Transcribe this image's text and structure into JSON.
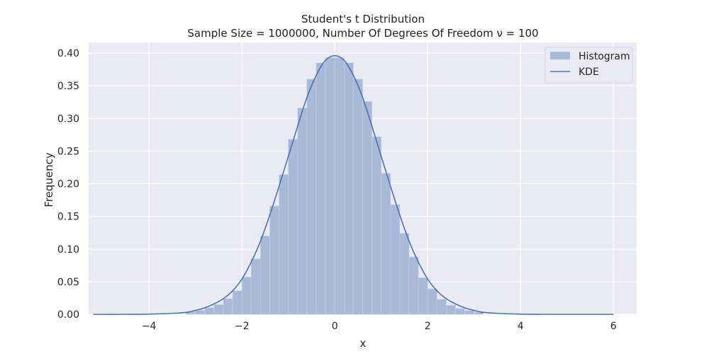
{
  "chart_data": {
    "type": "bar",
    "title": "Student's t Distribution",
    "subtitle": "Sample Size = 1000000, Number Of Degrees Of Freedom ν = 100",
    "xlabel": "x",
    "ylabel": "Frequency",
    "xlim": [
      -5.3,
      6.5
    ],
    "ylim": [
      0,
      0.4
    ],
    "xticks": [
      -4,
      -2,
      0,
      2,
      4,
      6
    ],
    "xtick_labels": [
      "−4",
      "−2",
      "0",
      "2",
      "4",
      "6"
    ],
    "yticks": [
      0.0,
      0.05,
      0.1,
      0.15,
      0.2,
      0.25,
      0.3,
      0.35,
      0.4
    ],
    "ytick_labels": [
      "0.00",
      "0.05",
      "0.10",
      "0.15",
      "0.20",
      "0.25",
      "0.30",
      "0.35",
      "0.40"
    ],
    "grid": true,
    "legend_position": "top-right",
    "colors": {
      "background": "#eaeaf2",
      "grid": "#ffffff",
      "bar": "#a9b9d8",
      "kde": "#4c72b0"
    },
    "histogram": {
      "name": "Histogram",
      "bin_width": 0.2,
      "bin_starts": [
        -3.2,
        -3.0,
        -2.8,
        -2.6,
        -2.4,
        -2.2,
        -2.0,
        -1.8,
        -1.6,
        -1.4,
        -1.2,
        -1.0,
        -0.8,
        -0.6,
        -0.4,
        -0.2,
        0.0,
        0.2,
        0.4,
        0.6,
        0.8,
        1.0,
        1.2,
        1.4,
        1.6,
        1.8,
        2.0,
        2.2,
        2.4,
        2.6,
        2.8,
        3.0
      ],
      "values": [
        0.004,
        0.006,
        0.01,
        0.015,
        0.024,
        0.036,
        0.057,
        0.085,
        0.12,
        0.166,
        0.214,
        0.268,
        0.316,
        0.36,
        0.385,
        0.393,
        0.393,
        0.385,
        0.36,
        0.326,
        0.272,
        0.216,
        0.168,
        0.124,
        0.088,
        0.056,
        0.039,
        0.023,
        0.014,
        0.009,
        0.006,
        0.003
      ]
    },
    "kde": {
      "name": "KDE",
      "x": [
        -5.2,
        -4.5,
        -4.0,
        -3.5,
        -3.2,
        -3.0,
        -2.8,
        -2.6,
        -2.4,
        -2.2,
        -2.0,
        -1.8,
        -1.6,
        -1.4,
        -1.2,
        -1.0,
        -0.8,
        -0.6,
        -0.4,
        -0.2,
        0.0,
        0.2,
        0.4,
        0.6,
        0.8,
        1.0,
        1.2,
        1.4,
        1.6,
        1.8,
        2.0,
        2.2,
        2.4,
        2.6,
        2.8,
        3.0,
        3.2,
        3.5,
        4.0,
        4.5,
        5.0,
        5.5,
        6.0
      ],
      "y": [
        0.0,
        0.0,
        0.0003,
        0.0015,
        0.003,
        0.006,
        0.01,
        0.016,
        0.024,
        0.036,
        0.054,
        0.08,
        0.112,
        0.152,
        0.196,
        0.242,
        0.288,
        0.332,
        0.366,
        0.389,
        0.396,
        0.389,
        0.366,
        0.332,
        0.288,
        0.242,
        0.196,
        0.152,
        0.112,
        0.08,
        0.054,
        0.036,
        0.024,
        0.016,
        0.01,
        0.006,
        0.003,
        0.0015,
        0.0003,
        0.0,
        0.0,
        0.0,
        0.0
      ]
    }
  }
}
